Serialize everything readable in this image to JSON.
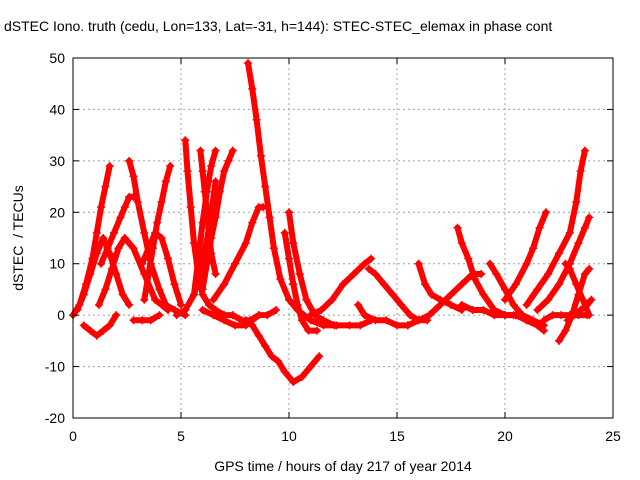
{
  "chart_data": {
    "type": "scatter",
    "title": "dSTEC Iono. truth (cedu, Lon=133, Lat=-31, h=144): STEC-STEC_elemax in phase cont",
    "xlabel": "GPS time / hours of day 217 of year 2014",
    "ylabel": "dSTEC  / TECUs",
    "xlim": [
      0,
      25
    ],
    "ylim": [
      -20,
      50
    ],
    "xticks": [
      0,
      5,
      10,
      15,
      20,
      25
    ],
    "yticks": [
      -20,
      -10,
      0,
      10,
      20,
      30,
      40,
      50
    ],
    "grid": true,
    "marker": "+",
    "color": "#ff0000",
    "series": [
      {
        "x": [
          0.0,
          0.3,
          0.6,
          0.9,
          1.1,
          1.3,
          1.5,
          1.7
        ],
        "y": [
          0,
          2,
          6,
          11,
          16,
          21,
          25,
          29
        ]
      },
      {
        "x": [
          0.2,
          0.5,
          0.8,
          1.1,
          1.4,
          1.7,
          2.0,
          2.3,
          2.6
        ],
        "y": [
          1,
          4,
          8,
          12,
          15,
          12,
          8,
          4,
          2
        ]
      },
      {
        "x": [
          1.3,
          1.6,
          1.9,
          2.2,
          2.4,
          2.6,
          2.8
        ],
        "y": [
          10,
          13,
          16,
          19,
          21,
          23,
          23
        ]
      },
      {
        "x": [
          0.5,
          0.8,
          1.1,
          1.4,
          1.7,
          2.0
        ],
        "y": [
          -2,
          -3,
          -4,
          -3,
          -2,
          0
        ]
      },
      {
        "x": [
          1.2,
          1.5,
          1.8,
          2.1,
          2.4,
          2.8,
          3.3,
          3.8,
          4.4
        ],
        "y": [
          2,
          5,
          9,
          13,
          15,
          13,
          8,
          3,
          1
        ]
      },
      {
        "x": [
          2.6,
          2.8,
          3.0,
          3.3,
          3.6,
          4.0,
          4.3,
          4.7,
          5.2
        ],
        "y": [
          30,
          27,
          22,
          16,
          10,
          5,
          2,
          1,
          0
        ]
      },
      {
        "x": [
          3.3,
          3.5,
          3.7,
          3.9,
          4.1,
          4.3,
          4.5
        ],
        "y": [
          3,
          8,
          13,
          18,
          22,
          26,
          29
        ]
      },
      {
        "x": [
          3.2,
          3.5,
          3.8,
          4.1,
          4.4,
          4.7,
          5.0
        ],
        "y": [
          10,
          13,
          16,
          15,
          11,
          6,
          2
        ]
      },
      {
        "x": [
          2.8,
          3.2,
          3.6,
          4.0
        ],
        "y": [
          -1,
          -1,
          -1,
          0
        ]
      },
      {
        "x": [
          5.2,
          5.3,
          5.45,
          5.6,
          5.8,
          6.0,
          6.3,
          6.6,
          7.0
        ],
        "y": [
          34,
          28,
          21,
          14,
          8,
          4,
          2,
          1,
          0
        ]
      },
      {
        "x": [
          5.6,
          5.8,
          6.0,
          6.2,
          6.4,
          6.6
        ],
        "y": [
          4,
          11,
          18,
          24,
          29,
          32
        ]
      },
      {
        "x": [
          6.0,
          6.2,
          6.4,
          6.6,
          6.8,
          7.0,
          7.2,
          7.4
        ],
        "y": [
          5,
          10,
          15,
          19,
          24,
          28,
          30,
          32
        ]
      },
      {
        "x": [
          5.9,
          6.0,
          6.1,
          6.2,
          6.3,
          6.4,
          6.6
        ],
        "y": [
          32,
          28,
          24,
          20,
          16,
          12,
          8
        ]
      },
      {
        "x": [
          4.8,
          5.2,
          5.6,
          6.0,
          6.3,
          6.6
        ],
        "y": [
          0,
          1,
          4,
          10,
          17,
          26
        ]
      },
      {
        "x": [
          7.0,
          7.4,
          7.8,
          8.2,
          8.6,
          9.0,
          9.4
        ],
        "y": [
          0,
          0,
          -1,
          -1,
          0,
          0,
          1
        ]
      },
      {
        "x": [
          8.1,
          8.3,
          8.5,
          8.7,
          8.9,
          9.1,
          9.3,
          9.6,
          10.0,
          10.4,
          11.0,
          11.6,
          12.2,
          12.8,
          13.3,
          13.8
        ],
        "y": [
          49,
          44,
          38,
          31,
          25,
          19,
          13,
          7,
          3,
          1,
          -1,
          -2,
          -2,
          -2,
          -2,
          -1
        ]
      },
      {
        "x": [
          6.5,
          7.0,
          7.5,
          8.0,
          8.3,
          8.6,
          8.8
        ],
        "y": [
          3,
          6,
          10,
          14,
          18,
          21,
          21
        ]
      },
      {
        "x": [
          8.0,
          8.3,
          8.6,
          8.9,
          9.2,
          9.5,
          9.8,
          10.2,
          10.6,
          11.0,
          11.4
        ],
        "y": [
          -1,
          -2,
          -4,
          -6,
          -8,
          -9,
          -11,
          -13,
          -12,
          -10,
          -8
        ]
      },
      {
        "x": [
          6.0,
          6.5,
          7.0,
          7.5,
          8.0,
          8.3,
          8.6
        ],
        "y": [
          1,
          0,
          -1,
          -2,
          -2,
          -1,
          0
        ]
      },
      {
        "x": [
          9.8,
          10.0,
          10.2,
          10.4,
          10.6,
          10.9,
          11.3
        ],
        "y": [
          16,
          11,
          6,
          2,
          -1,
          -3,
          -3
        ]
      },
      {
        "x": [
          10.0,
          10.2,
          10.5,
          10.8,
          11.2,
          11.6,
          12.1
        ],
        "y": [
          20,
          14,
          8,
          3,
          0,
          -1,
          -2
        ]
      },
      {
        "x": [
          11.0,
          11.5,
          12.0,
          12.5,
          13.0,
          13.5,
          13.8
        ],
        "y": [
          0,
          1,
          3,
          6,
          8,
          10,
          11
        ]
      },
      {
        "x": [
          13.2,
          13.5,
          14.0,
          14.5,
          15.0,
          15.5
        ],
        "y": [
          2,
          0,
          -1,
          -1,
          -2,
          -2
        ]
      },
      {
        "x": [
          13.7,
          14.0,
          14.4,
          14.8,
          15.2,
          15.6,
          16.0,
          16.4
        ],
        "y": [
          9,
          8,
          6,
          4,
          2,
          0,
          -1,
          -1
        ]
      },
      {
        "x": [
          16.0,
          16.3,
          16.6,
          17.0,
          17.5,
          18.0
        ],
        "y": [
          10,
          6,
          4,
          3,
          2,
          1
        ]
      },
      {
        "x": [
          15.5,
          16.0,
          16.5,
          17.0,
          17.5,
          18.0,
          18.5,
          18.9
        ],
        "y": [
          -2,
          -1,
          0,
          2,
          4,
          6,
          8,
          8
        ]
      },
      {
        "x": [
          17.8,
          18.0,
          18.3,
          18.6,
          19.0,
          19.5,
          20.0,
          20.4
        ],
        "y": [
          17,
          14,
          11,
          7,
          4,
          1,
          0,
          0
        ]
      },
      {
        "x": [
          18.0,
          18.5,
          19.0,
          19.5,
          20.0,
          20.5,
          21.0
        ],
        "y": [
          2,
          1,
          1,
          0,
          0,
          0,
          -1
        ]
      },
      {
        "x": [
          19.3,
          19.6,
          20.0,
          20.4,
          20.8,
          21.3,
          21.8
        ],
        "y": [
          10,
          8,
          5,
          2,
          0,
          -1,
          -2
        ]
      },
      {
        "x": [
          20.5,
          21.0,
          21.5,
          21.8
        ],
        "y": [
          0,
          -1,
          -2,
          -3
        ]
      },
      {
        "x": [
          20.0,
          20.5,
          21.0,
          21.3,
          21.6,
          21.9
        ],
        "y": [
          3,
          6,
          10,
          13,
          17,
          20
        ]
      },
      {
        "x": [
          21.0,
          21.5,
          22.0,
          22.5,
          23.0,
          23.3,
          23.5,
          23.7
        ],
        "y": [
          2,
          5,
          8,
          12,
          16,
          22,
          28,
          32
        ]
      },
      {
        "x": [
          21.5,
          22.0,
          22.5,
          23.0,
          23.4,
          23.7,
          23.9
        ],
        "y": [
          1,
          3,
          6,
          10,
          14,
          17,
          19
        ]
      },
      {
        "x": [
          22.5,
          22.8,
          23.1,
          23.4,
          23.7,
          23.9
        ],
        "y": [
          -5,
          -3,
          0,
          4,
          8,
          9
        ]
      },
      {
        "x": [
          22.9,
          23.2,
          23.5,
          23.8,
          24.0
        ],
        "y": [
          -1,
          0,
          1,
          2,
          3
        ]
      },
      {
        "x": [
          22.8,
          23.0,
          23.3,
          23.6,
          23.9
        ],
        "y": [
          10,
          9,
          6,
          3,
          0
        ]
      },
      {
        "x": [
          21.8,
          22.2,
          22.6,
          23.0,
          23.4,
          23.8
        ],
        "y": [
          -1,
          0,
          0,
          0,
          0,
          0
        ]
      }
    ]
  }
}
